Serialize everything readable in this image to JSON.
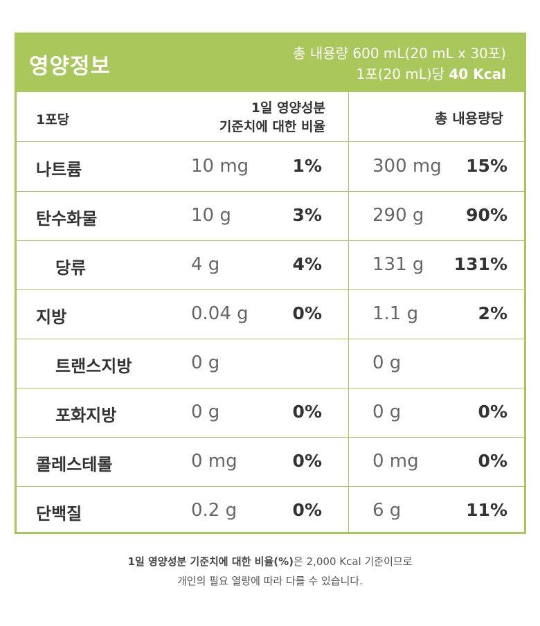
{
  "header": {
    "title": "영양정보",
    "total_content": "총 내용량 600 mL(20 mL x 30포)",
    "per_pack_prefix": "1포(20 mL)당 ",
    "per_pack_kcal": "40 Kcal"
  },
  "columns": {
    "per_pack": "1포당",
    "daily_line1": "1일 영양성분",
    "daily_line2": "기준치에 대한 비율",
    "total": "총 내용량당"
  },
  "rows": [
    {
      "name": "나트륨",
      "sub": false,
      "amount": "10 mg",
      "percent": "1%",
      "total_amount": "300 mg",
      "total_percent": "15%"
    },
    {
      "name": "탄수화물",
      "sub": false,
      "amount": "10 g",
      "percent": "3%",
      "total_amount": "290 g",
      "total_percent": "90%"
    },
    {
      "name": "당류",
      "sub": true,
      "amount": "4 g",
      "percent": "4%",
      "total_amount": "131 g",
      "total_percent": "131%"
    },
    {
      "name": "지방",
      "sub": false,
      "amount": "0.04 g",
      "percent": "0%",
      "total_amount": "1.1 g",
      "total_percent": "2%"
    },
    {
      "name": "트랜스지방",
      "sub": true,
      "amount": "0 g",
      "percent": "",
      "total_amount": "0 g",
      "total_percent": ""
    },
    {
      "name": "포화지방",
      "sub": true,
      "amount": "0 g",
      "percent": "0%",
      "total_amount": "0 g",
      "total_percent": "0%"
    },
    {
      "name": "콜레스테롤",
      "sub": false,
      "amount": "0 mg",
      "percent": "0%",
      "total_amount": "0 mg",
      "total_percent": "0%"
    },
    {
      "name": "단백질",
      "sub": false,
      "amount": "0.2 g",
      "percent": "0%",
      "total_amount": "6 g",
      "total_percent": "11%"
    }
  ],
  "footnote": {
    "line1_bold": "1일 영양성분 기준치에 대한 비율(%)",
    "line1_rest": "은 2,000 Kcal 기준이므로",
    "line2": "개인의 필요 열량에 따라 다를 수 있습니다."
  },
  "colors": {
    "accent": "#a9c75b",
    "text": "#333333",
    "muted": "#666666"
  }
}
